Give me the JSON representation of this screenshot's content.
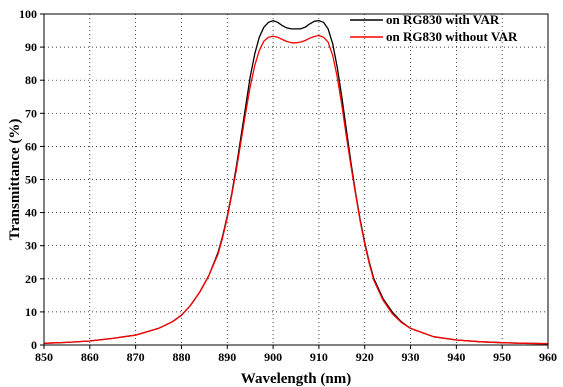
{
  "chart_data": {
    "type": "line",
    "xlabel": "Wavelength (nm)",
    "ylabel": "Transmittance (%)",
    "xlim": [
      850,
      960
    ],
    "ylim": [
      0,
      100
    ],
    "xticks": [
      850,
      860,
      870,
      880,
      890,
      900,
      910,
      920,
      930,
      940,
      950,
      960
    ],
    "yticks": [
      0,
      10,
      20,
      30,
      40,
      50,
      60,
      70,
      80,
      90,
      100
    ],
    "grid": true,
    "legend_position": "top-right",
    "series": [
      {
        "name": "on RG830 with VAR",
        "color": "#000000",
        "x": [
          850,
          855,
          860,
          865,
          870,
          875,
          878,
          880,
          882,
          884,
          886,
          888,
          889,
          890,
          891,
          892,
          893,
          894,
          895,
          896,
          897,
          898,
          899,
          900,
          901,
          902,
          903,
          904,
          905,
          906,
          907,
          908,
          909,
          910,
          911,
          912,
          913,
          914,
          915,
          916,
          917,
          918,
          919,
          920,
          921,
          922,
          924,
          926,
          928,
          930,
          935,
          940,
          945,
          950,
          955,
          960
        ],
        "values": [
          0.5,
          0.8,
          1.2,
          2.0,
          3.0,
          5.0,
          7.0,
          9.0,
          12.0,
          16.0,
          21.0,
          28.0,
          33.0,
          39.0,
          46.0,
          54.0,
          63.0,
          72.0,
          81.0,
          88.0,
          93.0,
          96.0,
          97.5,
          98.0,
          97.5,
          96.5,
          95.8,
          95.5,
          95.5,
          95.5,
          96.0,
          97.0,
          97.8,
          98.0,
          97.5,
          95.5,
          91.0,
          84.0,
          75.0,
          65.0,
          55.0,
          46.0,
          38.0,
          31.0,
          25.0,
          20.0,
          14.0,
          10.0,
          7.0,
          5.0,
          2.5,
          1.5,
          1.0,
          0.7,
          0.5,
          0.4
        ]
      },
      {
        "name": "on RG830 without VAR",
        "color": "#ff0000",
        "x": [
          850,
          855,
          860,
          865,
          870,
          875,
          878,
          880,
          882,
          884,
          886,
          888,
          889,
          890,
          891,
          892,
          893,
          894,
          895,
          896,
          897,
          898,
          899,
          900,
          901,
          902,
          903,
          904,
          905,
          906,
          907,
          908,
          909,
          910,
          911,
          912,
          913,
          914,
          915,
          916,
          917,
          918,
          919,
          920,
          921,
          922,
          924,
          926,
          928,
          930,
          935,
          940,
          945,
          950,
          955,
          960
        ],
        "values": [
          0.5,
          0.8,
          1.2,
          2.0,
          3.0,
          5.0,
          7.0,
          9.0,
          12.0,
          16.0,
          21.0,
          27.5,
          32.5,
          38.5,
          45.5,
          53.0,
          61.5,
          70.0,
          78.0,
          84.5,
          89.0,
          91.8,
          93.0,
          93.3,
          93.0,
          92.3,
          91.7,
          91.3,
          91.3,
          91.5,
          92.0,
          92.7,
          93.2,
          93.5,
          93.0,
          91.5,
          87.5,
          81.0,
          72.5,
          63.0,
          54.0,
          45.5,
          37.5,
          30.5,
          24.5,
          19.5,
          13.5,
          9.5,
          6.8,
          5.0,
          2.5,
          1.5,
          1.0,
          0.7,
          0.5,
          0.4
        ]
      }
    ]
  }
}
